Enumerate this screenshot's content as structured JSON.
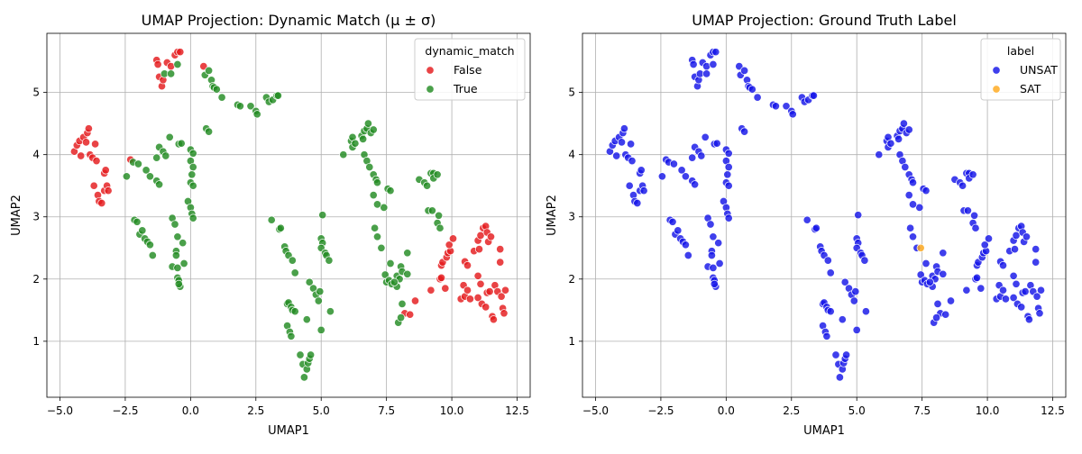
{
  "chart_data": [
    {
      "type": "scatter",
      "title": "UMAP Projection: Dynamic Match (μ ± σ)",
      "xlabel": "UMAP1",
      "ylabel": "UMAP2",
      "xlim": [
        -5.5,
        13.0
      ],
      "ylim": [
        0.1,
        5.95
      ],
      "xticks": [
        -5.0,
        -2.5,
        0.0,
        2.5,
        5.0,
        7.5,
        10.0,
        12.5
      ],
      "xtick_labels": [
        "−5.0",
        "−2.5",
        "0.0",
        "2.5",
        "5.0",
        "7.5",
        "10.0",
        "12.5"
      ],
      "yticks": [
        1,
        2,
        3,
        4,
        5
      ],
      "ytick_labels": [
        "1",
        "2",
        "3",
        "4",
        "5"
      ],
      "grid": true,
      "legend": {
        "title": "dynamic_match",
        "placement": "top-right"
      },
      "series": [
        {
          "name": "False",
          "color": "#e41a1c",
          "points": [
            [
              -4.45,
              4.05
            ],
            [
              -4.35,
              4.15
            ],
            [
              -4.25,
              4.22
            ],
            [
              -4.2,
              3.98
            ],
            [
              -4.1,
              4.28
            ],
            [
              -4.0,
              4.2
            ],
            [
              -3.95,
              4.35
            ],
            [
              -3.9,
              4.42
            ],
            [
              -3.85,
              4.0
            ],
            [
              -3.75,
              3.95
            ],
            [
              -3.65,
              4.17
            ],
            [
              -3.6,
              3.9
            ],
            [
              -3.7,
              3.5
            ],
            [
              -3.55,
              3.35
            ],
            [
              -3.5,
              3.25
            ],
            [
              -3.4,
              3.22
            ],
            [
              -3.3,
              3.7
            ],
            [
              -3.25,
              3.75
            ],
            [
              -3.3,
              3.42
            ],
            [
              -3.2,
              3.5
            ],
            [
              -3.15,
              3.42
            ],
            [
              -2.3,
              3.92
            ],
            [
              -1.3,
              5.52
            ],
            [
              -1.25,
              5.45
            ],
            [
              -1.2,
              5.25
            ],
            [
              -1.1,
              5.1
            ],
            [
              -1.05,
              5.2
            ],
            [
              -0.9,
              5.48
            ],
            [
              -0.75,
              5.42
            ],
            [
              -0.6,
              5.6
            ],
            [
              -0.5,
              5.65
            ],
            [
              -0.4,
              5.65
            ],
            [
              0.5,
              5.42
            ],
            [
              8.2,
              1.45
            ],
            [
              8.4,
              1.43
            ],
            [
              8.6,
              1.65
            ],
            [
              9.2,
              1.82
            ],
            [
              9.55,
              2.0
            ],
            [
              9.6,
              2.22
            ],
            [
              9.65,
              2.27
            ],
            [
              9.75,
              1.85
            ],
            [
              9.8,
              2.35
            ],
            [
              9.85,
              2.42
            ],
            [
              9.95,
              2.45
            ],
            [
              9.9,
              2.55
            ],
            [
              10.05,
              2.65
            ],
            [
              9.6,
              2.02
            ],
            [
              10.35,
              1.68
            ],
            [
              10.5,
              1.72
            ],
            [
              10.45,
              1.9
            ],
            [
              10.5,
              2.28
            ],
            [
              10.6,
              2.22
            ],
            [
              10.6,
              1.82
            ],
            [
              10.7,
              1.68
            ],
            [
              10.85,
              2.45
            ],
            [
              11.0,
              2.62
            ],
            [
              11.05,
              2.48
            ],
            [
              11.1,
              2.7
            ],
            [
              11.2,
              2.82
            ],
            [
              11.3,
              2.85
            ],
            [
              11.35,
              2.75
            ],
            [
              11.4,
              2.6
            ],
            [
              11.5,
              2.68
            ],
            [
              11.0,
              2.05
            ],
            [
              11.1,
              1.92
            ],
            [
              11.0,
              1.7
            ],
            [
              11.15,
              1.6
            ],
            [
              11.3,
              1.55
            ],
            [
              11.35,
              1.78
            ],
            [
              11.45,
              1.8
            ],
            [
              11.55,
              1.4
            ],
            [
              11.6,
              1.35
            ],
            [
              11.65,
              1.9
            ],
            [
              11.75,
              1.8
            ],
            [
              11.85,
              2.27
            ],
            [
              11.85,
              2.48
            ],
            [
              11.9,
              1.72
            ],
            [
              11.95,
              1.53
            ],
            [
              12.0,
              1.45
            ],
            [
              12.05,
              1.82
            ]
          ]
        },
        {
          "name": "True",
          "color": "#228b22",
          "points": [
            [
              -1.0,
              5.3
            ],
            [
              -0.75,
              5.3
            ],
            [
              -0.5,
              5.45
            ],
            [
              0.55,
              5.28
            ],
            [
              0.7,
              5.35
            ],
            [
              0.8,
              5.2
            ],
            [
              0.85,
              5.1
            ],
            [
              0.9,
              5.08
            ],
            [
              1.0,
              5.05
            ],
            [
              1.2,
              4.92
            ],
            [
              1.8,
              4.8
            ],
            [
              1.9,
              4.78
            ],
            [
              2.3,
              4.78
            ],
            [
              2.5,
              4.7
            ],
            [
              2.55,
              4.65
            ],
            [
              2.9,
              4.92
            ],
            [
              3.0,
              4.85
            ],
            [
              3.15,
              4.88
            ],
            [
              3.3,
              4.95
            ],
            [
              3.35,
              4.95
            ],
            [
              -2.2,
              3.88
            ],
            [
              -2.0,
              3.85
            ],
            [
              -1.7,
              3.75
            ],
            [
              -1.55,
              3.65
            ],
            [
              -1.3,
              3.58
            ],
            [
              -1.2,
              3.52
            ],
            [
              -1.3,
              3.95
            ],
            [
              -1.2,
              4.12
            ],
            [
              -1.05,
              4.05
            ],
            [
              -0.95,
              3.98
            ],
            [
              -0.8,
              4.28
            ],
            [
              -0.45,
              4.17
            ],
            [
              -0.35,
              4.18
            ],
            [
              0.0,
              4.08
            ],
            [
              0.1,
              4.02
            ],
            [
              0.0,
              3.9
            ],
            [
              0.1,
              3.8
            ],
            [
              0.05,
              3.68
            ],
            [
              0.0,
              3.55
            ],
            [
              0.1,
              3.5
            ],
            [
              0.6,
              4.42
            ],
            [
              0.7,
              4.37
            ],
            [
              -2.45,
              3.65
            ],
            [
              -2.15,
              2.95
            ],
            [
              -2.05,
              2.92
            ],
            [
              -1.95,
              2.72
            ],
            [
              -1.85,
              2.78
            ],
            [
              -1.75,
              2.65
            ],
            [
              -1.65,
              2.6
            ],
            [
              -1.55,
              2.55
            ],
            [
              -1.45,
              2.38
            ],
            [
              -0.7,
              2.98
            ],
            [
              -0.6,
              2.88
            ],
            [
              -0.5,
              2.68
            ],
            [
              -0.55,
              2.45
            ],
            [
              -0.55,
              2.38
            ],
            [
              -0.7,
              2.2
            ],
            [
              -0.5,
              2.18
            ],
            [
              -0.3,
              2.58
            ],
            [
              -0.25,
              2.25
            ],
            [
              -0.1,
              3.25
            ],
            [
              0.0,
              3.15
            ],
            [
              0.05,
              3.05
            ],
            [
              0.1,
              2.98
            ],
            [
              -0.5,
              2.02
            ],
            [
              -0.45,
              1.98
            ],
            [
              -0.4,
              1.88
            ],
            [
              -0.45,
              1.92
            ],
            [
              3.1,
              2.95
            ],
            [
              3.4,
              2.8
            ],
            [
              3.45,
              2.82
            ],
            [
              3.6,
              2.52
            ],
            [
              3.65,
              2.45
            ],
            [
              3.75,
              2.38
            ],
            [
              3.9,
              2.3
            ],
            [
              4.0,
              2.1
            ],
            [
              3.7,
              1.6
            ],
            [
              3.75,
              1.62
            ],
            [
              3.85,
              1.55
            ],
            [
              3.9,
              1.5
            ],
            [
              4.0,
              1.48
            ],
            [
              3.7,
              1.25
            ],
            [
              3.8,
              1.15
            ],
            [
              3.85,
              1.08
            ],
            [
              4.2,
              0.78
            ],
            [
              4.3,
              0.63
            ],
            [
              4.45,
              0.55
            ],
            [
              4.5,
              0.65
            ],
            [
              4.55,
              0.72
            ],
            [
              4.6,
              0.78
            ],
            [
              4.35,
              0.42
            ],
            [
              4.45,
              1.35
            ],
            [
              4.55,
              1.95
            ],
            [
              4.7,
              1.85
            ],
            [
              4.8,
              1.75
            ],
            [
              4.9,
              1.65
            ],
            [
              4.95,
              1.8
            ],
            [
              5.0,
              1.18
            ],
            [
              5.0,
              2.65
            ],
            [
              5.05,
              2.58
            ],
            [
              5.0,
              2.5
            ],
            [
              5.05,
              3.03
            ],
            [
              5.15,
              2.42
            ],
            [
              5.2,
              2.38
            ],
            [
              5.3,
              2.3
            ],
            [
              5.35,
              1.48
            ],
            [
              5.85,
              4.0
            ],
            [
              6.15,
              4.22
            ],
            [
              6.2,
              4.28
            ],
            [
              6.2,
              4.12
            ],
            [
              6.3,
              4.18
            ],
            [
              6.55,
              4.3
            ],
            [
              6.6,
              4.25
            ],
            [
              6.65,
              4.38
            ],
            [
              6.75,
              4.42
            ],
            [
              6.8,
              4.5
            ],
            [
              6.9,
              4.35
            ],
            [
              7.0,
              4.4
            ],
            [
              6.65,
              4.0
            ],
            [
              6.75,
              3.9
            ],
            [
              6.85,
              3.8
            ],
            [
              7.0,
              3.68
            ],
            [
              7.1,
              3.6
            ],
            [
              7.15,
              3.55
            ],
            [
              7.4,
              3.15
            ],
            [
              7.55,
              3.45
            ],
            [
              7.65,
              3.42
            ],
            [
              7.0,
              3.35
            ],
            [
              7.15,
              3.2
            ],
            [
              7.05,
              2.82
            ],
            [
              7.15,
              2.68
            ],
            [
              7.3,
              2.5
            ],
            [
              7.45,
              2.07
            ],
            [
              7.5,
              1.95
            ],
            [
              7.6,
              1.98
            ],
            [
              7.7,
              1.92
            ],
            [
              7.65,
              2.25
            ],
            [
              7.9,
              2.05
            ],
            [
              8.0,
              2.0
            ],
            [
              7.9,
              1.88
            ],
            [
              7.8,
              1.95
            ],
            [
              8.05,
              2.2
            ],
            [
              8.1,
              2.12
            ],
            [
              8.3,
              2.08
            ],
            [
              8.3,
              2.42
            ],
            [
              7.95,
              1.3
            ],
            [
              8.05,
              1.38
            ],
            [
              8.1,
              1.6
            ],
            [
              8.75,
              3.6
            ],
            [
              8.95,
              3.55
            ],
            [
              9.05,
              3.5
            ],
            [
              9.2,
              3.7
            ],
            [
              9.3,
              3.7
            ],
            [
              9.3,
              3.62
            ],
            [
              9.45,
              3.68
            ],
            [
              9.1,
              3.1
            ],
            [
              9.25,
              3.1
            ],
            [
              9.45,
              2.9
            ],
            [
              9.55,
              2.82
            ],
            [
              9.5,
              3.02
            ]
          ]
        }
      ]
    },
    {
      "type": "scatter",
      "title": "UMAP Projection: Ground Truth Label",
      "xlabel": "UMAP1",
      "ylabel": "UMAP2",
      "xlim": [
        -5.5,
        13.0
      ],
      "ylim": [
        0.1,
        5.95
      ],
      "xticks": [
        -5.0,
        -2.5,
        0.0,
        2.5,
        5.0,
        7.5,
        10.0,
        12.5
      ],
      "xtick_labels": [
        "−5.0",
        "−2.5",
        "0.0",
        "2.5",
        "5.0",
        "7.5",
        "10.0",
        "12.5"
      ],
      "yticks": [
        1,
        2,
        3,
        4,
        5
      ],
      "ytick_labels": [
        "1",
        "2",
        "3",
        "4",
        "5"
      ],
      "grid": true,
      "legend": {
        "title": "label",
        "placement": "top-right"
      },
      "series": [
        {
          "name": "UNSAT",
          "color": "#1515e8",
          "points": "same-as-left-panel"
        },
        {
          "name": "SAT",
          "color": "#ffa81c",
          "points": [
            [
              7.45,
              2.5
            ]
          ]
        }
      ]
    }
  ]
}
